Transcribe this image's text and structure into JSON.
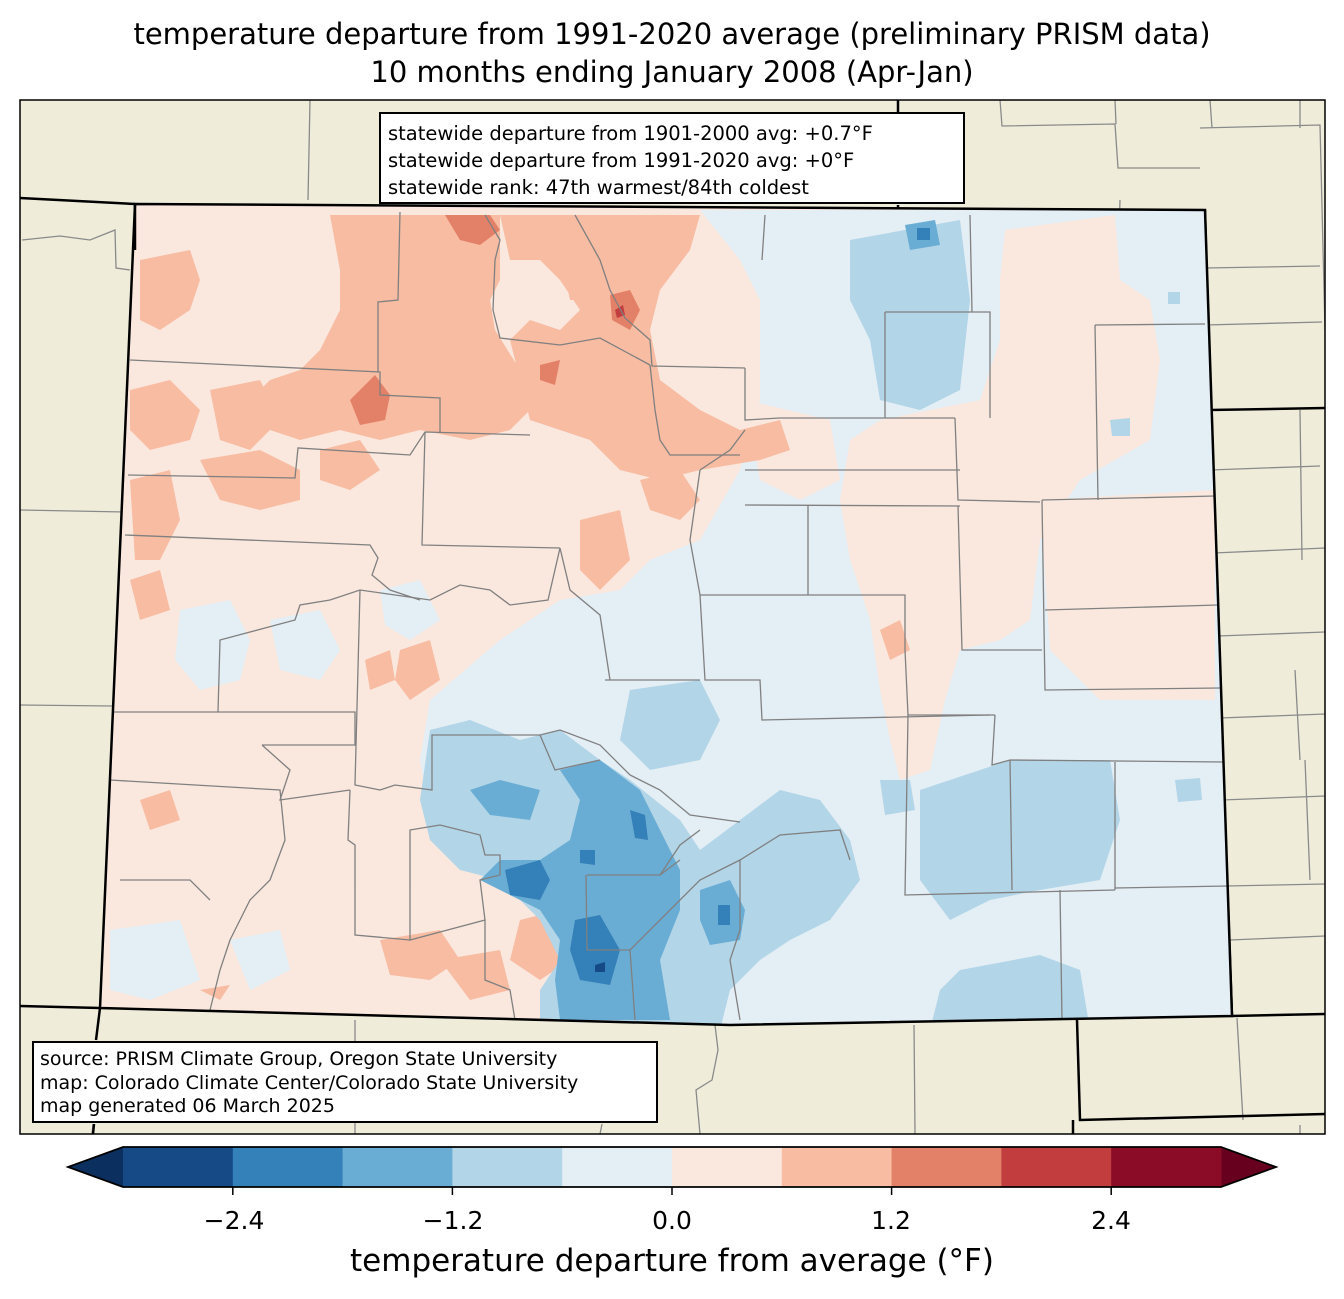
{
  "title": {
    "line1": "temperature departure from 1991-2020 average (preliminary PRISM data)",
    "line2": "10 months ending January 2008 (Apr-Jan)"
  },
  "stats": {
    "line1": "statewide departure from 1901-2000 avg: +0.7°F",
    "line2": "statewide departure from 1991-2020 avg: +0°F",
    "line3": "statewide rank: 47th warmest/84th coldest"
  },
  "source": {
    "line1": "source: PRISM Climate Group, Oregon State University",
    "line2": "map: Colorado Climate Center/Colorado State University",
    "line3": "map generated 06 March 2025"
  },
  "colorbar": {
    "label": "temperature departure from average (°F)",
    "ticks": [
      "−2.4",
      "−1.2",
      "0.0",
      "1.2",
      "2.4"
    ],
    "tick_values": [
      -2.4,
      -1.2,
      0.0,
      1.2,
      2.4
    ],
    "bounds": [
      -3.0,
      -2.4,
      -1.8,
      -1.2,
      -0.6,
      0.0,
      0.6,
      1.2,
      1.8,
      2.4,
      3.0
    ],
    "colors": [
      "#154a87",
      "#3480b9",
      "#6aadd4",
      "#b2d5e8",
      "#e4eef5",
      "#fae8de",
      "#f7bca2",
      "#e38068",
      "#c13d3e",
      "#8a0c26"
    ],
    "under_color": "#0b3060",
    "over_color": "#67001f"
  },
  "map_colors": {
    "background": "#efedda",
    "state_line": "#000000",
    "county_line": "#808080"
  }
}
